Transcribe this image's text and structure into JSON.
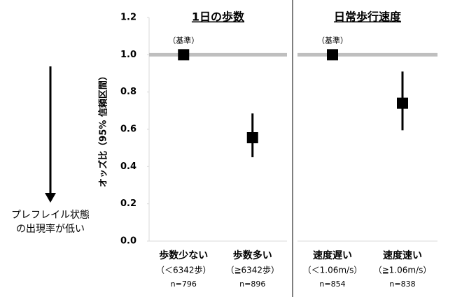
{
  "chart_data": [
    {
      "type": "forest",
      "title": "1日の歩数",
      "ylabel": "オッズ比（95% 信頼区間）",
      "categories": [
        "歩数少ない",
        "歩数多い"
      ],
      "category_notes": [
        "（＜6342歩）",
        "（≧6342歩）"
      ],
      "n_labels": [
        "n=796",
        "n=896"
      ],
      "values": [
        1.0,
        0.555
      ],
      "ci_low": [
        null,
        0.45
      ],
      "ci_high": [
        null,
        0.685
      ],
      "value_annotations": [
        "（基準）",
        null
      ],
      "reference": 1.0,
      "color": "#000000",
      "reference_color": "#bfbfbf",
      "ylim": [
        0,
        1.2
      ],
      "yticks": [
        {
          "value": 0,
          "label": "0.0"
        },
        0.2,
        0.4,
        0.6,
        0.8,
        {
          "value": 1,
          "label": "1.0"
        },
        1.2
      ]
    },
    {
      "type": "forest",
      "title": "日常歩行速度",
      "categories": [
        "速度遅い",
        "速度速い"
      ],
      "category_notes": [
        "（＜1.06m/s）",
        "（≧1.06m/s）"
      ],
      "n_labels": [
        "n=854",
        "n=838"
      ],
      "values": [
        1.0,
        0.74
      ],
      "ci_low": [
        null,
        0.595
      ],
      "ci_high": [
        null,
        0.91
      ],
      "value_annotations": [
        "（基準）",
        null
      ],
      "reference": 1.0,
      "color": "#000000",
      "reference_color": "#bfbfbf",
      "ylim": [
        0,
        1.2
      ]
    }
  ],
  "annotation": [
    "プレフレイル状態",
    "の出現率が低い"
  ]
}
